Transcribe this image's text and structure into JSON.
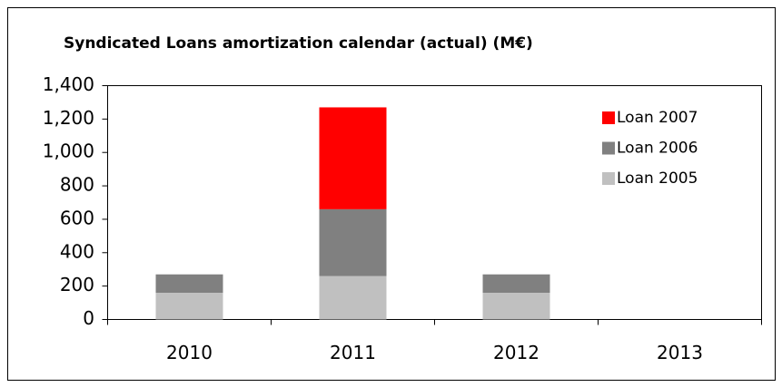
{
  "chart_data": {
    "type": "stacked_bar",
    "title": "Syndicated Loans amortization calendar (actual) (M€)",
    "categories": [
      "2010",
      "2011",
      "2012",
      "2013"
    ],
    "series": [
      {
        "name": "Loan 2005",
        "color": "#c0c0c0",
        "values": [
          160,
          260,
          160,
          0
        ]
      },
      {
        "name": "Loan 2006",
        "color": "#808080",
        "values": [
          110,
          400,
          110,
          0
        ]
      },
      {
        "name": "Loan 2007",
        "color": "#ff0000",
        "values": [
          0,
          610,
          0,
          0
        ]
      }
    ],
    "ylim": [
      0,
      1400
    ],
    "yticks": [
      0,
      200,
      400,
      600,
      800,
      {
        "value": 1000,
        "label": "1,000"
      },
      {
        "value": 1200,
        "label": "1,200"
      },
      {
        "value": 1400,
        "label": "1,400"
      }
    ],
    "legend": "upper right"
  }
}
